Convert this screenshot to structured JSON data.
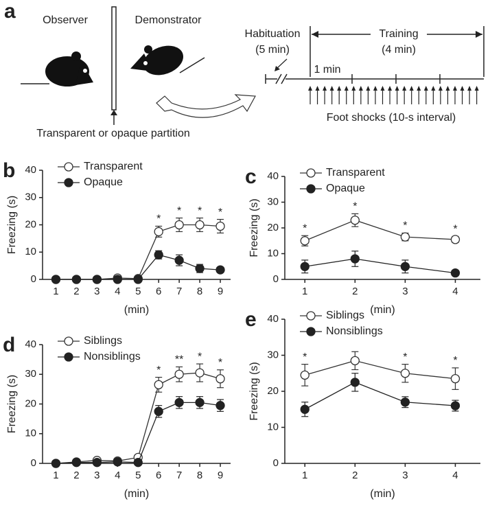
{
  "panel_a": {
    "panel": "a",
    "observer": "Observer",
    "demonstrator": "Demonstrator",
    "partition": "Transparent or opaque partition",
    "habituation": "Habituation",
    "habituation_duration": "(5 min)",
    "training": "Training",
    "training_duration": "(4 min)",
    "interval": "1 min",
    "shocks": "Foot shocks (10-s interval)"
  },
  "chart_data": [
    {
      "type": "line",
      "panel": "b",
      "ylabel": "Freezing (s)",
      "xlabel": "(min)",
      "xlim": [
        0.35,
        9.5
      ],
      "xticks": [
        1,
        2,
        3,
        4,
        5,
        6,
        7,
        8,
        9
      ],
      "ylim": [
        0,
        40
      ],
      "yticks": [
        0,
        10,
        20,
        30,
        40
      ],
      "legend": "upper left",
      "x": [
        1,
        2,
        3,
        4,
        5,
        6,
        7,
        8,
        9
      ],
      "series": [
        {
          "name": "Transparent",
          "color": "#333",
          "marker_fill": "#ffffff",
          "values": [
            0,
            0,
            0,
            0.5,
            0.3,
            17.5,
            20,
            20,
            19.5
          ],
          "errors": [
            0.3,
            0.3,
            0.3,
            0.5,
            0.5,
            2,
            2.5,
            2.5,
            2.5
          ]
        },
        {
          "name": "Opaque",
          "color": "#222",
          "marker_fill": "#222222",
          "values": [
            0,
            0,
            0,
            0,
            0,
            9,
            7,
            4,
            3.5
          ],
          "errors": [
            0.3,
            0.3,
            0.3,
            0.3,
            0.3,
            1.5,
            2,
            1.5,
            1
          ]
        }
      ],
      "annotations": [
        {
          "x": 6,
          "text": "*"
        },
        {
          "x": 7,
          "text": "*"
        },
        {
          "x": 8,
          "text": "*"
        },
        {
          "x": 9,
          "text": "*"
        }
      ]
    },
    {
      "type": "line",
      "panel": "c",
      "ylabel": "Freezing (s)",
      "xlabel": "(min)",
      "xlim": [
        0.6,
        4.5
      ],
      "xticks": [
        1,
        2,
        3,
        4
      ],
      "ylim": [
        0,
        40
      ],
      "yticks": [
        0,
        10,
        20,
        30,
        40
      ],
      "legend": "upper left",
      "x": [
        1,
        2,
        3,
        4
      ],
      "series": [
        {
          "name": "Transparent",
          "color": "#333",
          "marker_fill": "#ffffff",
          "values": [
            15,
            23,
            16.5,
            15.5
          ],
          "errors": [
            2,
            2.5,
            1.5,
            1.2
          ]
        },
        {
          "name": "Opaque",
          "color": "#222",
          "marker_fill": "#222222",
          "values": [
            5,
            8,
            5,
            2.5
          ],
          "errors": [
            2.5,
            3,
            2.5,
            1
          ]
        }
      ],
      "annotations": [
        {
          "x": 1,
          "text": "*"
        },
        {
          "x": 2,
          "text": "*"
        },
        {
          "x": 3,
          "text": "*"
        },
        {
          "x": 4,
          "text": "*"
        }
      ]
    },
    {
      "type": "line",
      "panel": "d",
      "ylabel": "Freezing (s)",
      "xlabel": "(min)",
      "xlim": [
        0.35,
        9.5
      ],
      "xticks": [
        1,
        2,
        3,
        4,
        5,
        6,
        7,
        8,
        9
      ],
      "ylim": [
        0,
        40
      ],
      "yticks": [
        0,
        10,
        20,
        30,
        40
      ],
      "legend": "upper left",
      "x": [
        1,
        2,
        3,
        4,
        5,
        6,
        7,
        8,
        9
      ],
      "series": [
        {
          "name": "Siblings",
          "color": "#333",
          "marker_fill": "#ffffff",
          "values": [
            0,
            0.5,
            1,
            0.8,
            2,
            26.5,
            30,
            30.5,
            28.5
          ],
          "errors": [
            0.3,
            0.5,
            0.8,
            0.5,
            0.8,
            2.5,
            2.5,
            3,
            3
          ]
        },
        {
          "name": "Nonsiblings",
          "color": "#222",
          "marker_fill": "#222222",
          "values": [
            0,
            0.3,
            0.3,
            0.5,
            0.3,
            17.5,
            20.5,
            20.5,
            19.5
          ],
          "errors": [
            0.3,
            0.3,
            0.3,
            0.3,
            0.3,
            2,
            2,
            2,
            2
          ]
        }
      ],
      "annotations": [
        {
          "x": 6,
          "text": "*"
        },
        {
          "x": 7,
          "text": "**"
        },
        {
          "x": 8,
          "text": "*"
        },
        {
          "x": 9,
          "text": "*"
        }
      ]
    },
    {
      "type": "line",
      "panel": "e",
      "ylabel": "Freezing (s)",
      "xlabel": "(min)",
      "xlim": [
        0.6,
        4.5
      ],
      "xticks": [
        1,
        2,
        3,
        4
      ],
      "ylim": [
        0,
        40
      ],
      "yticks": [
        0,
        10,
        20,
        30,
        40
      ],
      "legend": "upper left",
      "x": [
        1,
        2,
        3,
        4
      ],
      "series": [
        {
          "name": "Siblings",
          "color": "#333",
          "marker_fill": "#ffffff",
          "values": [
            24.5,
            28.5,
            25,
            23.5
          ],
          "errors": [
            3,
            2.5,
            2.5,
            3
          ]
        },
        {
          "name": "Nonsiblings",
          "color": "#222",
          "marker_fill": "#222222",
          "values": [
            15,
            22.5,
            17,
            16
          ],
          "errors": [
            2,
            2.5,
            1.5,
            1.5
          ]
        }
      ],
      "annotations": [
        {
          "x": 1,
          "text": "*"
        },
        {
          "x": 3,
          "text": "*"
        },
        {
          "x": 4,
          "text": "*"
        }
      ]
    }
  ]
}
